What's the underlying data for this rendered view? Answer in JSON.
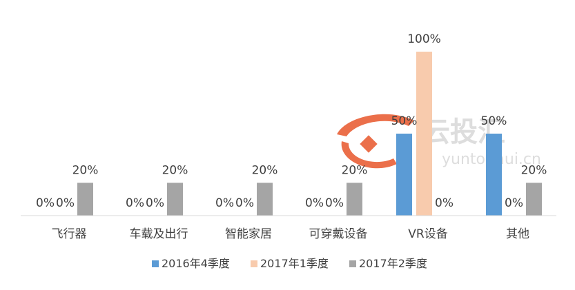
{
  "chart_data": {
    "type": "bar",
    "title": "",
    "xlabel": "",
    "ylabel": "",
    "ylim": [
      0,
      100
    ],
    "grid": false,
    "legend_position": "bottom",
    "categories": [
      "飞行器",
      "车载及出行",
      "智能家居",
      "可穿戴设备",
      "VR设备",
      "其他"
    ],
    "series": [
      {
        "name": "2016年4季度",
        "color": "#5b9bd5",
        "values": [
          0,
          0,
          0,
          0,
          50,
          50
        ]
      },
      {
        "name": "2017年1季度",
        "color": "#f8cbad",
        "values": [
          0,
          0,
          0,
          0,
          100,
          0
        ]
      },
      {
        "name": "2017年2季度",
        "color": "#a5a5a5",
        "values": [
          20,
          20,
          20,
          20,
          0,
          20
        ]
      }
    ],
    "value_suffix": "%"
  },
  "watermark": {
    "main_text": "云投汇",
    "sub_text": "yuntouhui.cn",
    "accent_color": "#e8572b"
  }
}
